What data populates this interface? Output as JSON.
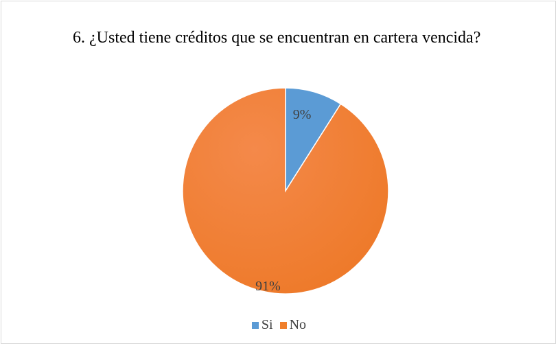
{
  "chart_data": {
    "type": "pie",
    "title": "6. ¿Usted tiene créditos que se encuentran en cartera vencida?",
    "categories": [
      "Si",
      "No"
    ],
    "values": [
      9,
      91
    ],
    "labels": [
      "9%",
      "91%"
    ],
    "colors": [
      "#5b9bd5",
      "#f07f2b"
    ],
    "legend_position": "bottom"
  }
}
